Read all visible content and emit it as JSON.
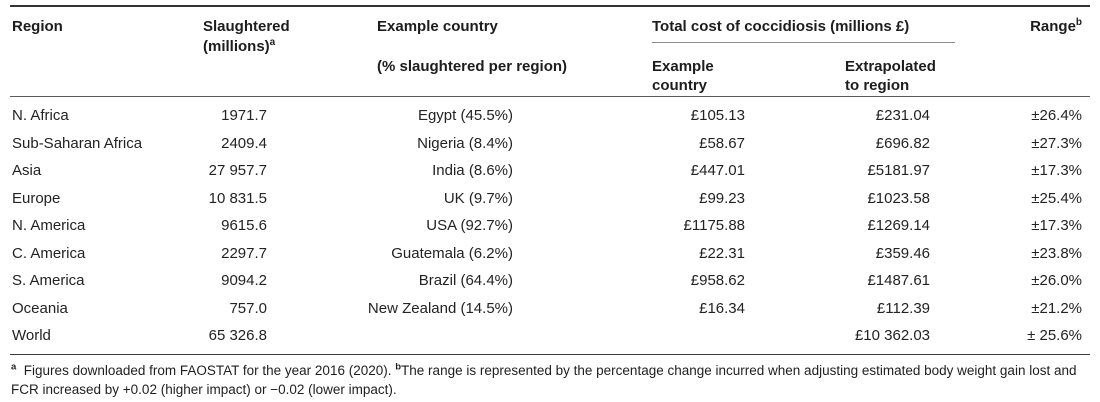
{
  "colors": {
    "text": "#232323",
    "rule_dark": "#343434",
    "rule_medium": "#5a5a5a",
    "rule_light": "#8c8c8c",
    "background": "#ffffff"
  },
  "table": {
    "headers": {
      "region": "Region",
      "slaughtered_line1": "Slaughtered",
      "slaughtered_line2": "(millions)",
      "slaughtered_sup": "a",
      "example_country": "Example country",
      "example_country_sub": "(% slaughtered per region)",
      "total_cost_group": "Total cost of coccidiosis (millions £)",
      "cost_example_country": "Example country",
      "cost_extrapolated_line1": "Extrapolated",
      "cost_extrapolated_line2": "to region",
      "range": "Range",
      "range_sup": "b"
    },
    "rows": [
      [
        "N. Africa",
        "1971.7",
        "Egypt (45.5%)",
        "£105.13",
        "£231.04",
        "±26.4%"
      ],
      [
        "Sub-Saharan Africa",
        "2409.4",
        "Nigeria (8.4%)",
        "£58.67",
        "£696.82",
        "±27.3%"
      ],
      [
        "Asia",
        "27 957.7",
        "India (8.6%)",
        "£447.01",
        "£5181.97",
        "±17.3%"
      ],
      [
        "Europe",
        "10 831.5",
        "UK (9.7%)",
        "£99.23",
        "£1023.58",
        "±25.4%"
      ],
      [
        "N. America",
        "9615.6",
        "USA (92.7%)",
        "£1175.88",
        "£1269.14",
        "±17.3%"
      ],
      [
        "C. America",
        "2297.7",
        "Guatemala (6.2%)",
        "£22.31",
        "£359.46",
        "±23.8%"
      ],
      [
        "S. America",
        "9094.2",
        "Brazil (64.4%)",
        "£958.62",
        "£1487.61",
        "±26.0%"
      ],
      [
        "Oceania",
        "757.0",
        "New Zealand (14.5%)",
        "£16.34",
        "£112.39",
        "±21.2%"
      ],
      [
        "World",
        "65 326.8",
        "",
        "",
        "£10 362.03",
        "± 25.6%"
      ]
    ],
    "footnote": {
      "sup_a": "a",
      "text_a": "  Figures downloaded from FAOSTAT for the year 2016 (2020). ",
      "sup_b": "b",
      "text_b": "The range is represented by the percentage change incurred when adjusting estimated body weight gain lost and FCR increased by +0.02 (higher impact) or −0.02 (lower impact)."
    }
  }
}
